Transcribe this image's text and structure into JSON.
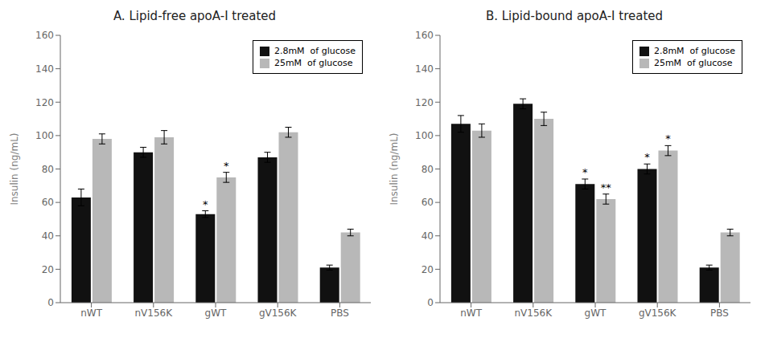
{
  "chart_data": [
    {
      "type": "bar",
      "title": "A.   Lipid-free apoA-I treated",
      "categories": [
        "nWT",
        "nV156K",
        "gWT",
        "gV156K",
        "PBS"
      ],
      "series": [
        {
          "name": "2.8mM  of glucose",
          "color": "#111111",
          "values": [
            63,
            90,
            53,
            87,
            21
          ],
          "errors": [
            5,
            3,
            2,
            3,
            1.5
          ],
          "annotations": {
            "gWT": "*"
          }
        },
        {
          "name": "25mM  of glucose",
          "color": "#b8b8b8",
          "values": [
            98,
            99,
            75,
            102,
            42
          ],
          "errors": [
            3,
            4,
            3,
            3,
            2
          ],
          "annotations": {
            "gWT": "*"
          }
        }
      ],
      "ylabel": "Insulin (ng/mL)",
      "ylim": [
        0,
        160
      ],
      "yticks": [
        0,
        20,
        40,
        60,
        80,
        100,
        120,
        140,
        160
      ],
      "grid": false,
      "legend": "upper right"
    },
    {
      "type": "bar",
      "title": "B. Lipid-bound apoA-I treated",
      "categories": [
        "nWT",
        "nV156K",
        "gWT",
        "gV156K",
        "PBS"
      ],
      "series": [
        {
          "name": "2.8mM  of glucose",
          "color": "#111111",
          "values": [
            107,
            119,
            71,
            80,
            21
          ],
          "errors": [
            5,
            3,
            3,
            3,
            1.5
          ],
          "annotations": {
            "gWT": "*",
            "gV156K": "*"
          }
        },
        {
          "name": "25mM  of glucose",
          "color": "#b8b8b8",
          "values": [
            103,
            110,
            62,
            91,
            42
          ],
          "errors": [
            4,
            4,
            3,
            3,
            2
          ],
          "annotations": {
            "gWT": "**",
            "gV156K": "*"
          }
        }
      ],
      "ylabel": "Insulin (ng/mL)",
      "ylim": [
        0,
        160
      ],
      "yticks": [
        0,
        20,
        40,
        60,
        80,
        100,
        120,
        140,
        160
      ],
      "grid": false,
      "legend": "upper right"
    }
  ]
}
